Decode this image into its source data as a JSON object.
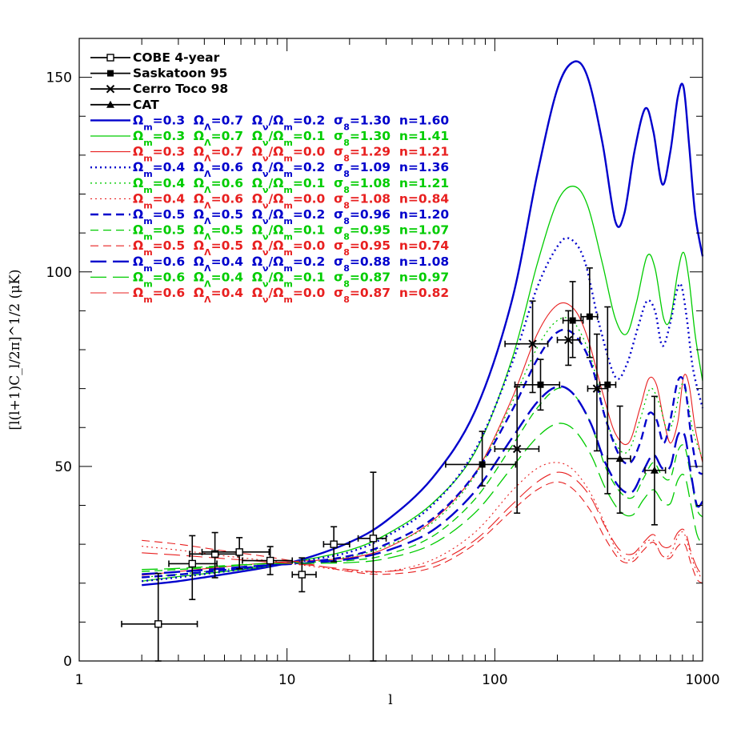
{
  "chart_data": {
    "type": "line",
    "xlabel": "l",
    "ylabel": "[l(l+1)C_l/2π]^1/2 (μK)",
    "xscale": "log",
    "xlim": [
      1,
      1000
    ],
    "ylim": [
      0,
      160
    ],
    "xticks": [
      1,
      10,
      100,
      1000
    ],
    "xtick_labels": [
      "1",
      "10",
      "100",
      "1000"
    ],
    "yticks": [
      0,
      50,
      100,
      150
    ],
    "ytick_labels": [
      "0",
      "50",
      "100",
      "150"
    ],
    "grid": false,
    "legend_position": "top-left",
    "colors": {
      "blue": "#0000cc",
      "green": "#00cc00",
      "red": "#e82020",
      "black": "#000000"
    },
    "datasets": [
      {
        "name": "COBE 4-year",
        "marker": "open-square",
        "points": [
          {
            "x": 2.4,
            "y": 9.5,
            "xerr": [
              1.6,
              3.7
            ],
            "yerr": [
              0,
              22.5
            ]
          },
          {
            "x": 3.5,
            "y": 25,
            "xerr": [
              2.7,
              4.6
            ],
            "yerr": [
              15.8,
              32.2
            ]
          },
          {
            "x": 4.5,
            "y": 27.5,
            "xerr": [
              3.4,
              5.8
            ],
            "yerr": [
              21.4,
              33
            ]
          },
          {
            "x": 5.9,
            "y": 28,
            "xerr": [
              3.9,
              8.2
            ],
            "yerr": [
              23.7,
              31.7
            ]
          },
          {
            "x": 8.3,
            "y": 25.8,
            "xerr": [
              6.1,
              10.6
            ],
            "yerr": [
              22.2,
              29.4
            ]
          },
          {
            "x": 11.8,
            "y": 22.2,
            "xerr": [
              10.6,
              13.8
            ],
            "yerr": [
              17.8,
              26.5
            ]
          },
          {
            "x": 16.8,
            "y": 30,
            "xerr": [
              15,
              20
            ],
            "yerr": [
              25.5,
              34.5
            ]
          },
          {
            "x": 26,
            "y": 31.5,
            "xerr": [
              22,
              30
            ],
            "yerr": [
              0,
              48.5
            ]
          }
        ]
      },
      {
        "name": "Saskatoon 95",
        "marker": "filled-square",
        "points": [
          {
            "x": 87,
            "y": 50.5,
            "xerr": [
              58,
              126
            ],
            "yerr": [
              45,
              59
            ]
          },
          {
            "x": 166,
            "y": 71,
            "xerr": [
              125,
              205
            ],
            "yerr": [
              64.5,
              77.5
            ]
          },
          {
            "x": 237,
            "y": 87.5,
            "xerr": [
              213,
              266
            ],
            "yerr": [
              78,
              97.5
            ]
          },
          {
            "x": 286,
            "y": 88.5,
            "xerr": [
              260,
              312
            ],
            "yerr": [
              78,
              101
            ]
          },
          {
            "x": 349,
            "y": 71,
            "xerr": [
              320,
              382
            ],
            "yerr": [
              43,
              91
            ]
          }
        ]
      },
      {
        "name": "Cerro Toco 98",
        "marker": "cross",
        "points": [
          {
            "x": 128,
            "y": 54.5,
            "xerr": [
              100,
              163
            ],
            "yerr": [
              38,
              70.5
            ]
          },
          {
            "x": 152,
            "y": 81.5,
            "xerr": [
              112,
              180
            ],
            "yerr": [
              69,
              92.5
            ]
          },
          {
            "x": 226,
            "y": 82.5,
            "xerr": [
              200,
              257
            ],
            "yerr": [
              76,
              90
            ]
          },
          {
            "x": 310,
            "y": 70,
            "xerr": [
              280,
              350
            ],
            "yerr": [
              54,
              84
            ]
          }
        ]
      },
      {
        "name": "CAT",
        "marker": "filled-triangle",
        "points": [
          {
            "x": 400,
            "y": 52,
            "xerr": [
              348,
              450
            ],
            "yerr": [
              38,
              65.5
            ]
          },
          {
            "x": 587,
            "y": 49,
            "xerr": [
              528,
              663
            ],
            "yerr": [
              35,
              68
            ]
          }
        ]
      }
    ],
    "series": [
      {
        "label_parts": [
          "Ωm",
          "=0.3  ",
          "ΩΛ",
          "=0.7  ",
          "Ων",
          "/",
          "Ωm",
          "=0.2  ",
          "σ8",
          "=1.30  n=1.60"
        ],
        "color": "blue",
        "dash": "solid",
        "width": 2.4,
        "bold": true,
        "x": [
          2,
          3,
          5,
          8,
          12,
          20,
          30,
          50,
          80,
          120,
          160,
          200,
          240,
          280,
          330,
          380,
          420,
          470,
          530,
          580,
          640,
          700,
          760,
          810,
          860,
          920,
          1000
        ],
        "y": [
          19.5,
          20.5,
          22.3,
          24.1,
          26.2,
          30.5,
          36,
          47,
          64,
          92,
          125,
          147,
          154,
          150,
          133,
          113,
          115,
          131,
          142,
          136,
          122.5,
          131,
          145,
          147.5,
          133,
          115,
          104
        ]
      },
      {
        "label_parts": [
          "Ωm",
          "=0.3  ",
          "ΩΛ",
          "=0.7  ",
          "Ων",
          "/",
          "Ωm",
          "=0.1  ",
          "σ8",
          "=1.30  n=1.41"
        ],
        "color": "green",
        "dash": "solid",
        "width": 1.3,
        "bold": false,
        "x": [
          2,
          3,
          5,
          8,
          12,
          20,
          30,
          50,
          80,
          120,
          160,
          200,
          240,
          280,
          330,
          380,
          430,
          480,
          540,
          590,
          650,
          700,
          760,
          810,
          860,
          920,
          1000
        ],
        "y": [
          20.5,
          21.7,
          23,
          24.3,
          25.9,
          28.5,
          32.5,
          40.5,
          53.5,
          77,
          102,
          118,
          122,
          117,
          102,
          88,
          84,
          92,
          104,
          101,
          88,
          88,
          100,
          105,
          98,
          84,
          72
        ]
      },
      {
        "label_parts": [
          "Ωm",
          "=0.3  ",
          "ΩΛ",
          "=0.7  ",
          "Ων",
          "/",
          "Ωm",
          "=0.0  ",
          "σ8",
          "=1.29  n=1.21"
        ],
        "color": "red",
        "dash": "solid",
        "width": 1.1,
        "bold": false,
        "x": [
          2,
          3,
          5,
          8,
          12,
          20,
          30,
          50,
          80,
          120,
          160,
          200,
          240,
          280,
          330,
          380,
          440,
          500,
          550,
          600,
          650,
          700,
          760,
          810,
          860,
          920,
          1000
        ],
        "y": [
          22,
          23,
          24.2,
          25.2,
          25.7,
          26.5,
          29,
          36,
          48,
          67,
          84,
          91.5,
          90.5,
          83,
          69,
          58.5,
          56,
          65,
          72.5,
          71,
          62,
          56,
          61.5,
          73,
          71,
          60,
          51
        ]
      },
      {
        "label_parts": [
          "Ωm",
          "=0.4  ",
          "ΩΛ",
          "=0.6  ",
          "Ων",
          "/",
          "Ωm",
          "=0.2  ",
          "σ8",
          "=1.09  n=1.36"
        ],
        "color": "blue",
        "dash": "dot",
        "width": 2.4,
        "bold": true,
        "x": [
          2,
          3,
          5,
          8,
          12,
          20,
          30,
          50,
          80,
          120,
          160,
          200,
          230,
          270,
          320,
          380,
          430,
          490,
          540,
          590,
          640,
          700,
          750,
          790,
          840,
          900,
          1000
        ],
        "y": [
          20.5,
          21.5,
          23,
          24.4,
          25.7,
          28,
          32,
          40,
          54,
          76,
          96,
          106.5,
          108.5,
          103,
          86,
          73,
          76,
          86,
          92.5,
          90,
          81,
          87,
          95,
          96.5,
          88,
          75,
          65
        ]
      },
      {
        "label_parts": [
          "Ωm",
          "=0.4  ",
          "ΩΛ",
          "=0.6  ",
          "Ων",
          "/",
          "Ωm",
          "=0.1  ",
          "σ8",
          "=1.08  n=1.21"
        ],
        "color": "green",
        "dash": "dot",
        "width": 1.3,
        "bold": false,
        "x": [
          2,
          3,
          5,
          8,
          12,
          20,
          30,
          50,
          80,
          120,
          160,
          200,
          240,
          290,
          340,
          390,
          440,
          500,
          560,
          620,
          680,
          740,
          790,
          840,
          900,
          1000
        ],
        "y": [
          21.5,
          22.3,
          23.5,
          24.5,
          25.2,
          26.8,
          29.5,
          35.5,
          47.5,
          66,
          80.5,
          87.5,
          87,
          78,
          63,
          55,
          54,
          62,
          70,
          66,
          59,
          64,
          71,
          68,
          59,
          52
        ]
      },
      {
        "label_parts": [
          "Ωm",
          "=0.4  ",
          "ΩΛ",
          "=0.6  ",
          "Ων",
          "/",
          "Ωm",
          "=0.0  ",
          "σ8",
          "=1.08  n=0.84"
        ],
        "color": "red",
        "dash": "dot",
        "width": 1.1,
        "bold": false,
        "x": [
          2,
          3,
          5,
          8,
          12,
          20,
          30,
          50,
          80,
          120,
          160,
          200,
          240,
          290,
          340,
          390,
          450,
          520,
          580,
          640,
          700,
          760,
          810,
          860,
          920,
          1000
        ],
        "y": [
          29.5,
          28.5,
          27,
          25.8,
          24.6,
          23.2,
          23,
          26,
          33,
          43.5,
          49.5,
          51,
          49,
          43,
          35,
          28,
          26,
          30,
          31,
          27,
          27.5,
          32,
          33,
          29,
          24,
          21
        ]
      },
      {
        "label_parts": [
          "Ωm",
          "=0.5  ",
          "ΩΛ",
          "=0.5  ",
          "Ων",
          "/",
          "Ωm",
          "=0.2  ",
          "σ8",
          "=0.96  n=1.20"
        ],
        "color": "blue",
        "dash": "dash",
        "width": 2.4,
        "bold": true,
        "x": [
          2,
          3,
          5,
          8,
          12,
          20,
          30,
          50,
          80,
          120,
          160,
          200,
          240,
          290,
          340,
          400,
          450,
          500,
          550,
          600,
          650,
          700,
          760,
          820,
          880,
          940,
          1000
        ],
        "y": [
          21.5,
          22.2,
          23.4,
          24.5,
          25.3,
          27,
          30,
          36.5,
          48,
          64,
          77.5,
          84.5,
          84,
          76.5,
          62.5,
          52.5,
          51,
          56,
          63.5,
          62,
          56,
          62,
          72,
          71,
          58,
          49.5,
          48
        ]
      },
      {
        "label_parts": [
          "Ωm",
          "=0.5  ",
          "ΩΛ",
          "=0.5  ",
          "Ων",
          "/",
          "Ωm",
          "=0.1  ",
          "σ8",
          "=0.95  n=1.07"
        ],
        "color": "green",
        "dash": "dash",
        "width": 1.3,
        "bold": false,
        "x": [
          2,
          3,
          5,
          8,
          12,
          20,
          30,
          50,
          80,
          120,
          160,
          200,
          240,
          290,
          340,
          400,
          460,
          520,
          580,
          640,
          700,
          760,
          820,
          880,
          940,
          1000
        ],
        "y": [
          23,
          23.5,
          24.3,
          25,
          25.3,
          25.8,
          27.3,
          32,
          41.5,
          55,
          65,
          70,
          68.5,
          61,
          50,
          43.5,
          42,
          47,
          51,
          47.5,
          47,
          54,
          55,
          47,
          39,
          37
        ]
      },
      {
        "label_parts": [
          "Ωm",
          "=0.5  ",
          "ΩΛ",
          "=0.5  ",
          "Ων",
          "/",
          "Ωm",
          "=0.0  ",
          "σ8",
          "=0.95  n=0.74"
        ],
        "color": "red",
        "dash": "dash",
        "width": 1.1,
        "bold": false,
        "x": [
          2,
          3,
          5,
          8,
          12,
          20,
          30,
          50,
          80,
          120,
          160,
          200,
          240,
          290,
          340,
          400,
          460,
          520,
          580,
          640,
          700,
          760,
          820,
          880,
          940,
          1000
        ],
        "y": [
          31,
          30,
          28.3,
          26.8,
          25.2,
          23,
          22.3,
          24,
          30,
          38.5,
          44,
          46,
          44,
          38.5,
          31.5,
          26,
          25.5,
          28.5,
          30.5,
          27,
          26.5,
          29.5,
          30,
          25,
          21,
          20
        ]
      },
      {
        "label_parts": [
          "Ωm",
          "=0.6  ",
          "ΩΛ",
          "=0.4  ",
          "Ων",
          "/",
          "Ωm",
          "=0.2  ",
          "σ8",
          "=0.88  n=1.08"
        ],
        "color": "blue",
        "dash": "longdash",
        "width": 2.4,
        "bold": true,
        "x": [
          2,
          3,
          5,
          8,
          12,
          20,
          30,
          50,
          80,
          120,
          160,
          200,
          240,
          290,
          340,
          400,
          460,
          520,
          580,
          640,
          700,
          760,
          820,
          880,
          940,
          1000
        ],
        "y": [
          22.3,
          22.9,
          23.8,
          24.6,
          25.1,
          26.2,
          28.3,
          33.5,
          43.5,
          57,
          66.5,
          70.5,
          68.5,
          61,
          51,
          44.5,
          43.5,
          49,
          53,
          49.5,
          50,
          58,
          58,
          48,
          40,
          41
        ]
      },
      {
        "label_parts": [
          "Ωm",
          "=0.6  ",
          "ΩΛ",
          "=0.4  ",
          "Ων",
          "/",
          "Ωm",
          "=0.1  ",
          "σ8",
          "=0.87  n=0.97"
        ],
        "color": "green",
        "dash": "longdash",
        "width": 1.3,
        "bold": false,
        "x": [
          2,
          3,
          5,
          8,
          12,
          20,
          30,
          50,
          80,
          120,
          160,
          200,
          240,
          290,
          340,
          400,
          460,
          520,
          580,
          640,
          700,
          760,
          820,
          880,
          940,
          1000
        ],
        "y": [
          23.5,
          23.8,
          24.5,
          25,
          25.1,
          25.3,
          26.3,
          30,
          38,
          49.5,
          57.5,
          61,
          59.5,
          53,
          44.5,
          38.5,
          37.5,
          41.5,
          44,
          41,
          40.5,
          46.5,
          47.5,
          40,
          32.5,
          30
        ]
      },
      {
        "label_parts": [
          "Ωm",
          "=0.6  ",
          "ΩΛ",
          "=0.4  ",
          "Ων",
          "/",
          "Ωm",
          "=0.0  ",
          "σ8",
          "=0.87  n=0.82"
        ],
        "color": "red",
        "dash": "longdash",
        "width": 1.1,
        "bold": false,
        "x": [
          2,
          3,
          5,
          8,
          12,
          20,
          30,
          50,
          80,
          120,
          160,
          200,
          240,
          290,
          340,
          400,
          460,
          520,
          580,
          640,
          700,
          760,
          820,
          880,
          940,
          1000
        ],
        "y": [
          27.8,
          27.2,
          26.3,
          25.5,
          24.8,
          23.5,
          23,
          25,
          31,
          40,
          46,
          48.5,
          47,
          42,
          34.5,
          28.5,
          27.5,
          30.5,
          32.5,
          29.5,
          29.5,
          33,
          33.5,
          28,
          24,
          22
        ]
      }
    ]
  }
}
